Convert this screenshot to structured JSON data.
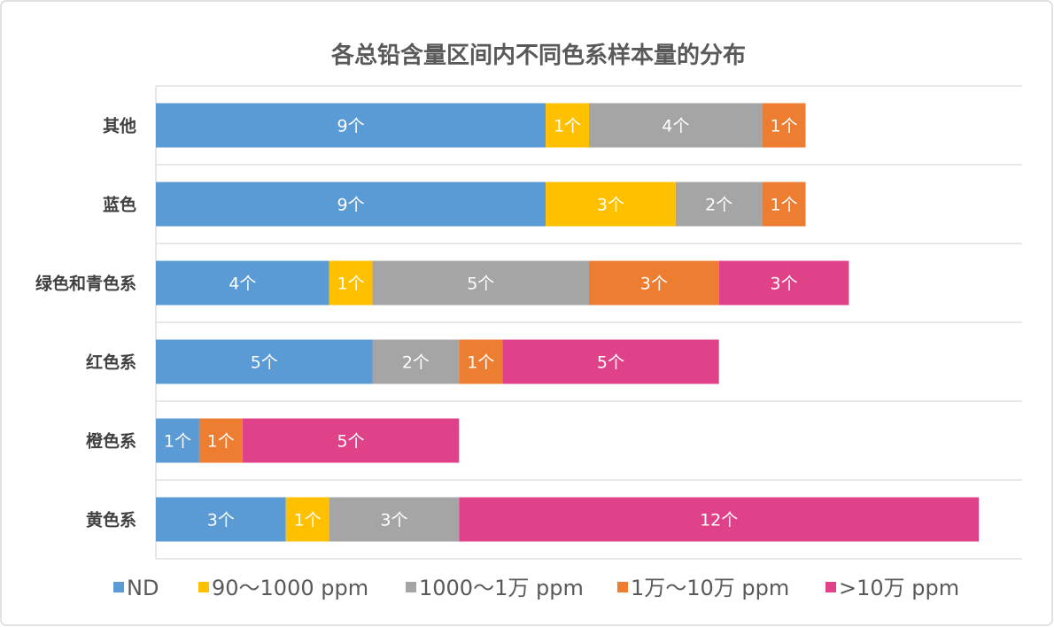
{
  "chart_data": {
    "type": "bar",
    "orientation": "horizontal",
    "stacked": true,
    "title": "各总铅含量区间内不同色系样本量的分布",
    "categories": [
      "其他",
      "蓝色",
      "绿色和青色系",
      "红色系",
      "橙色系",
      "黄色系"
    ],
    "series": [
      {
        "name": "ND",
        "color": "#5B9BD5",
        "values": [
          9,
          9,
          4,
          5,
          1,
          3
        ]
      },
      {
        "name": "90～1000 ppm",
        "color": "#FFC000",
        "values": [
          1,
          3,
          1,
          0,
          0,
          1
        ]
      },
      {
        "name": "1000～1万 ppm",
        "color": "#A5A5A5",
        "values": [
          4,
          2,
          5,
          2,
          0,
          3
        ]
      },
      {
        "name": "1万～10万 ppm",
        "color": "#ED7D31",
        "values": [
          1,
          1,
          3,
          1,
          1,
          0
        ]
      },
      {
        "name": ">10万 ppm",
        "color": "#E0428A",
        "values": [
          0,
          0,
          3,
          5,
          5,
          12
        ]
      }
    ],
    "data_label_suffix": "个",
    "xlim": [
      0,
      20
    ],
    "x_axis_visible": false,
    "grid": "horizontal category separators",
    "legend": "bottom"
  }
}
